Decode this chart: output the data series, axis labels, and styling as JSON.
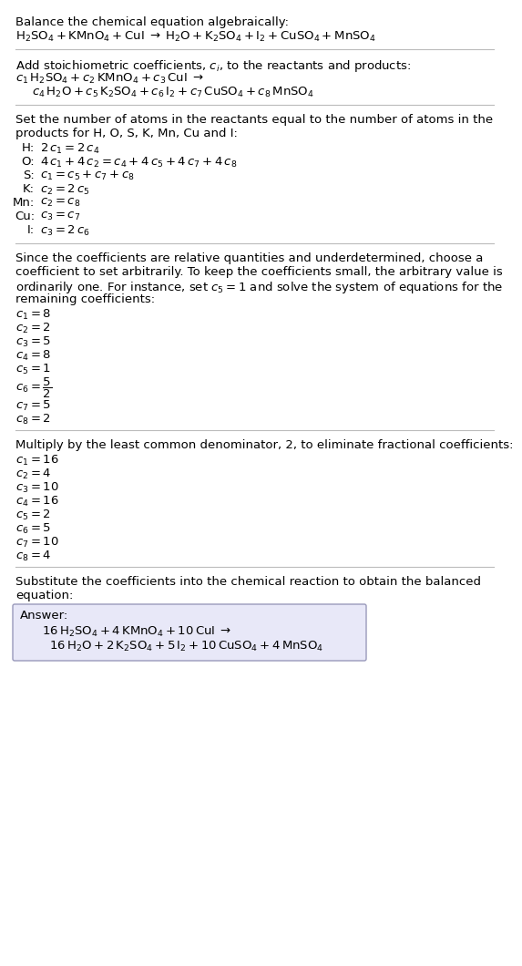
{
  "bg_color": "#ffffff",
  "lm": 7,
  "fs": 9.5,
  "lh": 15,
  "sep_color": "#bbbbbb",
  "answer_box_color": "#e8e8f8",
  "answer_box_edge": "#9999bb",
  "section1": {
    "title": "Balance the chemical equation algebraically:",
    "eq": "$\\mathrm{H_2SO_4 + KMnO_4 + CuI} \\;\\rightarrow\\; \\mathrm{H_2O + K_2SO_4 + I_2 + CuSO_4 + MnSO_4}$"
  },
  "section2": {
    "title": "Add stoichiometric coefficients, $c_i$, to the reactants and products:",
    "line1": "$c_1\\, \\mathrm{H_2SO_4} + c_2\\, \\mathrm{KMnO_4} + c_3\\, \\mathrm{CuI} \\;\\rightarrow$",
    "line2": "$c_4\\, \\mathrm{H_2O} + c_5\\, \\mathrm{K_2SO_4} + c_6\\, \\mathrm{I_2} + c_7\\, \\mathrm{CuSO_4} + c_8\\, \\mathrm{MnSO_4}$"
  },
  "section3": {
    "title1": "Set the number of atoms in the reactants equal to the number of atoms in the",
    "title2": "products for H, O, S, K, Mn, Cu and I:",
    "rows": [
      {
        "label": "H:",
        "eq": "$2\\,c_1 = 2\\,c_4$"
      },
      {
        "label": "O:",
        "eq": "$4\\,c_1 + 4\\,c_2 = c_4 + 4\\,c_5 + 4\\,c_7 + 4\\,c_8$"
      },
      {
        "label": "S:",
        "eq": "$c_1 = c_5 + c_7 + c_8$"
      },
      {
        "label": "K:",
        "eq": "$c_2 = 2\\,c_5$"
      },
      {
        "label": "Mn:",
        "eq": "$c_2 = c_8$"
      },
      {
        "label": "Cu:",
        "eq": "$c_3 = c_7$"
      },
      {
        "label": "I:",
        "eq": "$c_3 = 2\\,c_6$"
      }
    ]
  },
  "section4": {
    "title1": "Since the coefficients are relative quantities and underdetermined, choose a",
    "title2": "coefficient to set arbitrarily. To keep the coefficients small, the arbitrary value is",
    "title3": "ordinarily one. For instance, set $c_5 = 1$ and solve the system of equations for the",
    "title4": "remaining coefficients:",
    "coeffs": [
      "$c_1 = 8$",
      "$c_2 = 2$",
      "$c_3 = 5$",
      "$c_4 = 8$",
      "$c_5 = 1$",
      "$c_6 = \\dfrac{5}{2}$",
      "$c_7 = 5$",
      "$c_8 = 2$"
    ]
  },
  "section5": {
    "title": "Multiply by the least common denominator, 2, to eliminate fractional coefficients:",
    "coeffs": [
      "$c_1 = 16$",
      "$c_2 = 4$",
      "$c_3 = 10$",
      "$c_4 = 16$",
      "$c_5 = 2$",
      "$c_6 = 5$",
      "$c_7 = 10$",
      "$c_8 = 4$"
    ]
  },
  "section6": {
    "title1": "Substitute the coefficients into the chemical reaction to obtain the balanced",
    "title2": "equation:",
    "answer_label": "Answer:",
    "ans_line1": "$16\\,\\mathrm{H_2SO_4} + 4\\,\\mathrm{KMnO_4} + 10\\,\\mathrm{CuI} \\;\\rightarrow$",
    "ans_line2": "$16\\,\\mathrm{H_2O} + 2\\,\\mathrm{K_2SO_4} + 5\\,\\mathrm{I_2} + 10\\,\\mathrm{CuSO_4} + 4\\,\\mathrm{MnSO_4}$"
  }
}
